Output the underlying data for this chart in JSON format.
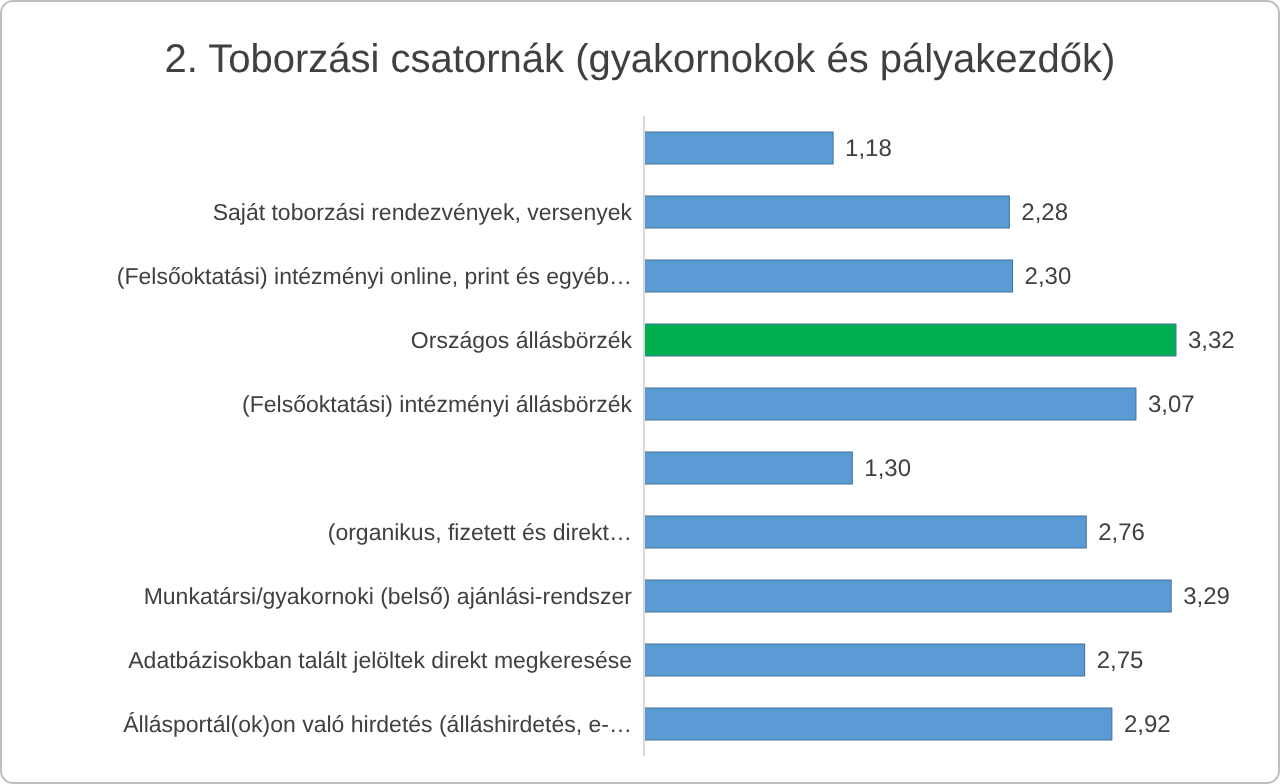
{
  "chart_data": {
    "type": "bar",
    "orientation": "horizontal",
    "title": "2. Toborzási csatornák (gyakornokok és pályakezdők)",
    "categories": [
      null,
      "Saját toborzási rendezvények, versenyek",
      "(Felsőoktatási) intézményi online, print és egyéb…",
      "Országos állásbörzék",
      "(Felsőoktatási) intézményi állásbörzék",
      null,
      "(organikus, fizetett és direkt…",
      "Munkatársi/gyakornoki (belső) ajánlási-rendszer",
      "Adatbázisokban talált jelöltek direkt megkeresése",
      "Állásportál(ok)on való hirdetés (álláshirdetés, e-…"
    ],
    "values": [
      1.18,
      2.28,
      2.3,
      3.32,
      3.07,
      1.3,
      2.76,
      3.29,
      2.75,
      2.92
    ],
    "colors": [
      "#5b9bd5",
      "#5b9bd5",
      "#5b9bd5",
      "#00b050",
      "#5b9bd5",
      "#5b9bd5",
      "#5b9bd5",
      "#5b9bd5",
      "#5b9bd5",
      "#5b9bd5"
    ],
    "value_labels": [
      "1,18",
      "2,28",
      "2,30",
      "3,32",
      "3,07",
      "1,30",
      "2,76",
      "3,29",
      "2,75",
      "2,92"
    ],
    "tick_labels": "x"
  }
}
